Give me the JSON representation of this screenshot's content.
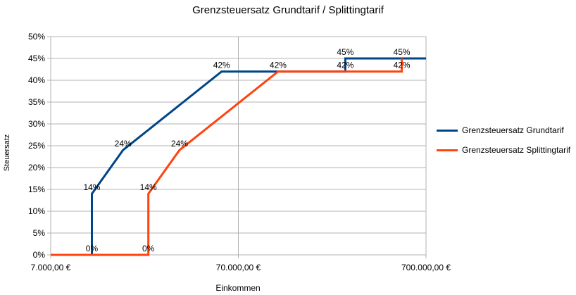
{
  "chart_data": {
    "type": "line",
    "title": "Grenzsteuersatz Grundtarif / Splittingtarif",
    "xlabel": "Einkommen",
    "ylabel": "Steuersatz",
    "x_scale": "log",
    "xlim": [
      7000,
      700000
    ],
    "ylim": [
      0,
      0.5
    ],
    "x_ticks": [
      {
        "value": 7000,
        "label": "7.000,00 €"
      },
      {
        "value": 70000,
        "label": "70.000,00 €"
      },
      {
        "value": 700000,
        "label": "700.000,00 €"
      }
    ],
    "y_ticks": [
      {
        "value": 0,
        "label": "0%"
      },
      {
        "value": 0.05,
        "label": "5%"
      },
      {
        "value": 0.1,
        "label": "10%"
      },
      {
        "value": 0.15,
        "label": "15%"
      },
      {
        "value": 0.2,
        "label": "20%"
      },
      {
        "value": 0.25,
        "label": "25%"
      },
      {
        "value": 0.3,
        "label": "30%"
      },
      {
        "value": 0.35,
        "label": "35%"
      },
      {
        "value": 0.4,
        "label": "40%"
      },
      {
        "value": 0.45,
        "label": "45%"
      },
      {
        "value": 0.5,
        "label": "50%"
      }
    ],
    "grid": true,
    "legend_position": "right",
    "series": [
      {
        "name": "Grenzsteuersatz Grundtarif",
        "color": "#004586",
        "points": [
          {
            "x": 7000,
            "y": 0
          },
          {
            "x": 11600,
            "y": 0,
            "label": "0%"
          },
          {
            "x": 11600,
            "y": 0.14,
            "label": "14%"
          },
          {
            "x": 17000,
            "y": 0.24,
            "label": "24%"
          },
          {
            "x": 57000,
            "y": 0.42,
            "label": "42%"
          },
          {
            "x": 260000,
            "y": 0.42,
            "label": "42%"
          },
          {
            "x": 260000,
            "y": 0.45,
            "label": "45%"
          },
          {
            "x": 700000,
            "y": 0.45
          }
        ]
      },
      {
        "name": "Grenzsteuersatz Splittingtarif",
        "color": "#ff420e",
        "points": [
          {
            "x": 7000,
            "y": 0
          },
          {
            "x": 23200,
            "y": 0,
            "label": "0%"
          },
          {
            "x": 23200,
            "y": 0.14,
            "label": "14%"
          },
          {
            "x": 34000,
            "y": 0.24,
            "label": "24%"
          },
          {
            "x": 114000,
            "y": 0.42,
            "label": "42%"
          },
          {
            "x": 520000,
            "y": 0.42,
            "label": "42%"
          },
          {
            "x": 520000,
            "y": 0.45,
            "label": "45%"
          }
        ]
      }
    ]
  }
}
